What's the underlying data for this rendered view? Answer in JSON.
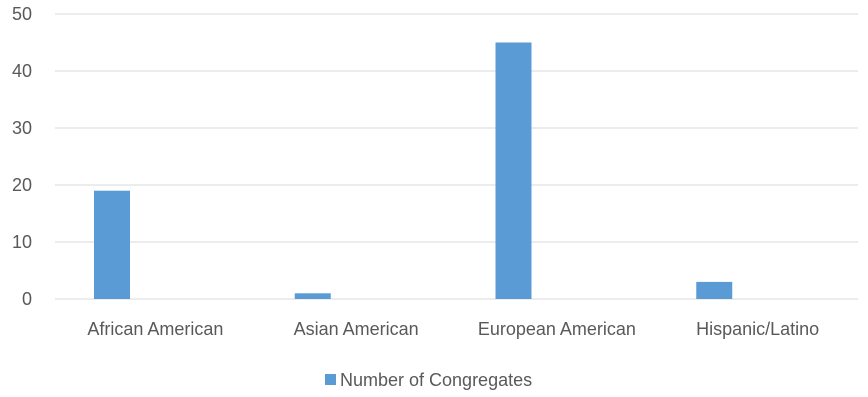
{
  "chart_data": {
    "type": "bar",
    "categories": [
      "African American",
      "Asian American",
      "European American",
      "Hispanic/Latino"
    ],
    "series": [
      {
        "name": "Number of Congregates",
        "values": [
          19,
          1,
          45,
          3
        ],
        "color": "#5B9BD5"
      }
    ],
    "y_ticks": [
      "0",
      "10",
      "20",
      "30",
      "40",
      "50"
    ],
    "ylim": [
      0,
      50
    ],
    "grid": true,
    "legend_position": "bottom",
    "colors": {
      "gridline": "#D9D9D9",
      "text": "#595959"
    }
  }
}
